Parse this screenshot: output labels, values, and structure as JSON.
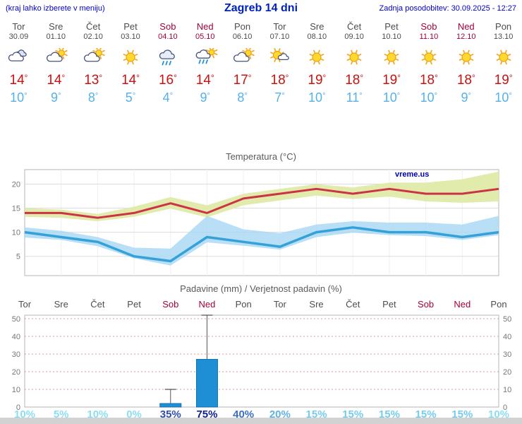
{
  "header": {
    "hint": "(kraj lahko izberete v meniju)",
    "title": "Zagreb 14 dni",
    "updated": "Zadnja posodobitev: 30.09.2025 - 12:27"
  },
  "degree": "°",
  "colors": {
    "header_blue": "#0000cc",
    "title_blue": "#0022bb",
    "weekday": "#4d4d4d",
    "weekend": "#a3003d",
    "temp_high": "#cc1111",
    "temp_low": "#55b1ea",
    "line_high": "#cc3344",
    "line_low": "#35a1d9",
    "band_high": "#dfeaa8",
    "band_low": "#a6d7f2",
    "bar": "#1e8fd5",
    "bar_border": "#1272ad",
    "grid": "#dcdcdc",
    "grid_precip": "#e39a9a",
    "axis_text": "#777777",
    "chart_border": "#b5b5b5",
    "watermark": "#0000aa",
    "whisker": "#555555"
  },
  "days": [
    {
      "name": "Tor",
      "date": "30.09",
      "weekend": false,
      "icon": "cloudy",
      "high": "14",
      "low": "10"
    },
    {
      "name": "Sre",
      "date": "01.10",
      "weekend": false,
      "icon": "partly",
      "high": "14",
      "low": "9"
    },
    {
      "name": "Čet",
      "date": "02.10",
      "weekend": false,
      "icon": "partly",
      "high": "13",
      "low": "8"
    },
    {
      "name": "Pet",
      "date": "03.10",
      "weekend": false,
      "icon": "sunny",
      "high": "14",
      "low": "5"
    },
    {
      "name": "Sob",
      "date": "04.10",
      "weekend": true,
      "icon": "rain",
      "high": "16",
      "low": "4"
    },
    {
      "name": "Ned",
      "date": "05.10",
      "weekend": true,
      "icon": "sun-rain",
      "high": "14",
      "low": "9"
    },
    {
      "name": "Pon",
      "date": "06.10",
      "weekend": false,
      "icon": "partly",
      "high": "17",
      "low": "8"
    },
    {
      "name": "Tor",
      "date": "07.10",
      "weekend": false,
      "icon": "mostly-sunny",
      "high": "18",
      "low": "7"
    },
    {
      "name": "Sre",
      "date": "08.10",
      "weekend": false,
      "icon": "sunny",
      "high": "19",
      "low": "10"
    },
    {
      "name": "Čet",
      "date": "09.10",
      "weekend": false,
      "icon": "sunny",
      "high": "18",
      "low": "11"
    },
    {
      "name": "Pet",
      "date": "10.10",
      "weekend": false,
      "icon": "sunny",
      "high": "19",
      "low": "10"
    },
    {
      "name": "Sob",
      "date": "11.10",
      "weekend": true,
      "icon": "sunny",
      "high": "18",
      "low": "10"
    },
    {
      "name": "Ned",
      "date": "12.10",
      "weekend": true,
      "icon": "sunny",
      "high": "18",
      "low": "9"
    },
    {
      "name": "Pon",
      "date": "13.10",
      "weekend": false,
      "icon": "sunny",
      "high": "19",
      "low": "10"
    }
  ],
  "chart_data": [
    {
      "type": "line",
      "title": "Temperatura (°C)",
      "watermark": "vreme.us",
      "ylim": [
        1,
        23
      ],
      "yticks": [
        5,
        10,
        15,
        20
      ],
      "categories": [
        "Tor 30.09",
        "Sre 01.10",
        "Čet 02.10",
        "Pet 03.10",
        "Sob 04.10",
        "Ned 05.10",
        "Pon 06.10",
        "Tor 07.10",
        "Sre 08.10",
        "Čet 09.10",
        "Pet 10.10",
        "Sob 11.10",
        "Ned 12.10",
        "Pon 13.10"
      ],
      "series": [
        {
          "name": "max_temp",
          "values": [
            14,
            14,
            13,
            14,
            16,
            14,
            17,
            18,
            19,
            18,
            19,
            18,
            18,
            19
          ]
        },
        {
          "name": "min_temp",
          "values": [
            10,
            9,
            8,
            5,
            4,
            9,
            8,
            7,
            10,
            11,
            10,
            10,
            9,
            10
          ]
        },
        {
          "name": "max_range_upper",
          "values": [
            15,
            14.7,
            13.8,
            15.3,
            17.3,
            15.6,
            18,
            19,
            20,
            19.3,
            20.3,
            20.3,
            21,
            22.6
          ]
        },
        {
          "name": "max_range_lower",
          "values": [
            13.2,
            13,
            12.3,
            13.2,
            14.9,
            13.1,
            15.6,
            16.6,
            17.6,
            16.9,
            17.4,
            16.4,
            16.1,
            16.4
          ]
        },
        {
          "name": "min_range_upper",
          "values": [
            11,
            10.3,
            9,
            6.8,
            6.6,
            13.4,
            10.6,
            9.8,
            11.6,
            12.3,
            12,
            12,
            11.6,
            13.4
          ]
        },
        {
          "name": "min_range_lower",
          "values": [
            8.9,
            8.4,
            7.1,
            4.6,
            3.1,
            7.9,
            7.2,
            6.4,
            9,
            9.9,
            9.4,
            9.2,
            8.4,
            9.4
          ]
        }
      ]
    },
    {
      "type": "bar",
      "title": "Padavine (mm) / Verjetnost padavin (%)",
      "ylim": [
        0,
        52
      ],
      "yticks": [
        0,
        10,
        20,
        30,
        40,
        50
      ],
      "categories": [
        "Tor 30.09",
        "Sre 01.10",
        "Čet 02.10",
        "Pet 03.10",
        "Sob 04.10",
        "Ned 05.10",
        "Pon 06.10",
        "Tor 07.10",
        "Sre 08.10",
        "Čet 09.10",
        "Pet 10.10",
        "Sob 11.10",
        "Ned 12.10",
        "Pon 13.10"
      ],
      "values": [
        0,
        0,
        0,
        0,
        2,
        27,
        0,
        0,
        0,
        0,
        0,
        0,
        0,
        0
      ],
      "whisker_high": [
        0,
        0,
        0,
        0,
        10,
        52,
        0,
        0,
        0,
        0,
        0,
        0,
        0,
        0
      ],
      "probabilities": [
        "10%",
        "5%",
        "10%",
        "0%",
        "35%",
        "75%",
        "40%",
        "20%",
        "15%",
        "15%",
        "15%",
        "15%",
        "15%",
        "10%"
      ],
      "prob_colors": [
        "#8adef2",
        "#8adef2",
        "#8adef2",
        "#8adef2",
        "#2e4fae",
        "#0f1e96",
        "#3c6ec4",
        "#5fb2e4",
        "#74cdec",
        "#74cdec",
        "#74cdec",
        "#74cdec",
        "#74cdec",
        "#8adef2"
      ]
    }
  ]
}
